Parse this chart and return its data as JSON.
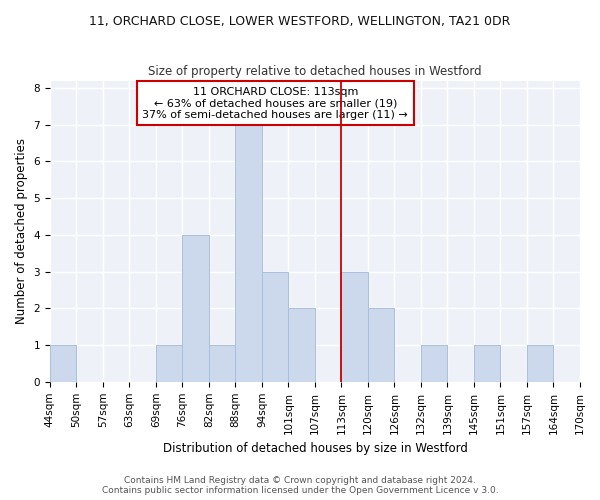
{
  "title": "11, ORCHARD CLOSE, LOWER WESTFORD, WELLINGTON, TA21 0DR",
  "subtitle": "Size of property relative to detached houses in Westford",
  "xlabel": "Distribution of detached houses by size in Westford",
  "ylabel": "Number of detached properties",
  "footer_line1": "Contains HM Land Registry data © Crown copyright and database right 2024.",
  "footer_line2": "Contains public sector information licensed under the Open Government Licence v 3.0.",
  "bin_edges": [
    0,
    1,
    2,
    3,
    4,
    5,
    6,
    7,
    8,
    9,
    10,
    11,
    12,
    13,
    14,
    15,
    16,
    17,
    18,
    19,
    20
  ],
  "bin_labels": [
    "44sqm",
    "50sqm",
    "57sqm",
    "63sqm",
    "69sqm",
    "76sqm",
    "82sqm",
    "88sqm",
    "94sqm",
    "101sqm",
    "107sqm",
    "113sqm",
    "120sqm",
    "126sqm",
    "132sqm",
    "139sqm",
    "145sqm",
    "151sqm",
    "157sqm",
    "164sqm",
    "170sqm"
  ],
  "bar_heights": [
    1,
    0,
    0,
    0,
    1,
    4,
    1,
    7,
    3,
    2,
    0,
    3,
    2,
    0,
    1,
    0,
    1,
    0,
    1,
    0
  ],
  "bar_color": "#ccd9ed",
  "bar_edge_color": "#aabfd9",
  "vline_x": 11,
  "vline_color": "#cc0000",
  "annotation_text": "11 ORCHARD CLOSE: 113sqm\n← 63% of detached houses are smaller (19)\n37% of semi-detached houses are larger (11) →",
  "annotation_box_color": "#ffffff",
  "annotation_box_edge_color": "#cc0000",
  "ylim": [
    0,
    8.2
  ],
  "yticks": [
    0,
    1,
    2,
    3,
    4,
    5,
    6,
    7,
    8
  ],
  "grid_color": "#d0d8e8",
  "background_color": "#ffffff",
  "title_fontsize": 9,
  "subtitle_fontsize": 8.5,
  "axis_label_fontsize": 8.5,
  "tick_fontsize": 7.5,
  "footer_fontsize": 6.5,
  "annot_fontsize": 8
}
